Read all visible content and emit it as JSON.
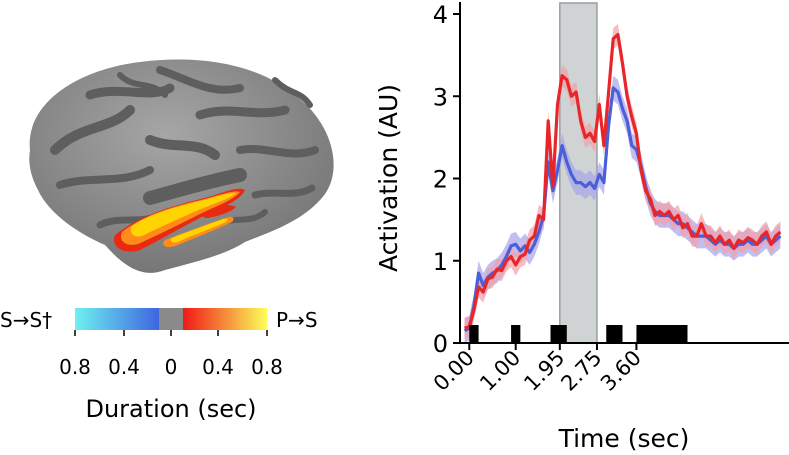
{
  "brain_panel": {
    "colorbar": {
      "left_label": "S→S†",
      "right_label": "P→S",
      "ticks": [
        "0.8",
        "0.4",
        "0",
        "0.4",
        "0.8"
      ],
      "title": "Duration (sec)",
      "colors": {
        "neg_low": "#6ef0f0",
        "neg_high": "#3e66e0",
        "zero": "#8a8a8a",
        "pos_low": "#f01818",
        "pos_high": "#fbff5a"
      }
    },
    "colors": {
      "cortex": "#8d8d8d",
      "sulci": "#5e5e5e",
      "activation_hot": "#ffd400",
      "activation_warm": "#ff8c1a",
      "activation_red": "#e82a10"
    }
  },
  "chart_data": {
    "type": "line",
    "xlabel": "Time (sec)",
    "ylabel": "Activation (AU)",
    "xlim": [
      -0.2,
      6.8
    ],
    "ylim": [
      0,
      4
    ],
    "yticks": [
      0,
      1,
      2,
      3,
      4
    ],
    "xticks": [
      0.0,
      1.0,
      1.95,
      2.75,
      3.6
    ],
    "xtick_labels": [
      "0.00",
      "1.00",
      "1.95",
      "2.75",
      "3.60"
    ],
    "shaded_interval": {
      "x0": 1.95,
      "x1": 2.75,
      "color": "#cfd3d3"
    },
    "significance_bars": [
      [
        0.0,
        0.2
      ],
      [
        0.9,
        1.1
      ],
      [
        1.75,
        2.1
      ],
      [
        2.95,
        3.3
      ],
      [
        3.6,
        4.7
      ]
    ],
    "series": [
      {
        "name": "red",
        "color": "#e8262a",
        "band_color": "#f2a0a8",
        "x": [
          -0.1,
          0.0,
          0.1,
          0.2,
          0.3,
          0.4,
          0.5,
          0.6,
          0.7,
          0.8,
          0.9,
          1.0,
          1.1,
          1.2,
          1.3,
          1.4,
          1.5,
          1.6,
          1.7,
          1.8,
          1.9,
          2.0,
          2.1,
          2.2,
          2.3,
          2.4,
          2.5,
          2.6,
          2.7,
          2.8,
          2.9,
          3.0,
          3.1,
          3.2,
          3.3,
          3.4,
          3.5,
          3.6,
          3.7,
          3.8,
          3.9,
          4.0,
          4.1,
          4.2,
          4.3,
          4.4,
          4.5,
          4.6,
          4.7,
          4.8,
          4.9,
          5.0,
          5.1,
          5.2,
          5.3,
          5.4,
          5.5,
          5.6,
          5.7,
          5.8,
          5.9,
          6.0,
          6.1,
          6.2,
          6.3,
          6.4,
          6.5,
          6.6,
          6.7
        ],
        "values": [
          0.18,
          0.2,
          0.4,
          0.68,
          0.62,
          0.78,
          0.8,
          0.9,
          0.88,
          1.0,
          1.05,
          0.95,
          1.05,
          1.08,
          1.25,
          1.3,
          1.55,
          1.5,
          2.7,
          1.9,
          2.9,
          3.25,
          3.2,
          3.0,
          3.05,
          2.7,
          2.5,
          2.55,
          2.45,
          2.9,
          2.4,
          3.05,
          3.7,
          3.75,
          3.4,
          3.0,
          2.75,
          2.55,
          2.1,
          1.85,
          1.75,
          1.55,
          1.6,
          1.55,
          1.6,
          1.5,
          1.55,
          1.4,
          1.45,
          1.3,
          1.3,
          1.45,
          1.3,
          1.3,
          1.22,
          1.3,
          1.2,
          1.25,
          1.15,
          1.25,
          1.22,
          1.28,
          1.25,
          1.2,
          1.3,
          1.35,
          1.2,
          1.3,
          1.35
        ],
        "band_halfwidth": 0.13
      },
      {
        "name": "blue",
        "color": "#4a5fd8",
        "band_color": "#a7a4ea",
        "x": [
          -0.1,
          0.0,
          0.1,
          0.2,
          0.3,
          0.4,
          0.5,
          0.6,
          0.7,
          0.8,
          0.9,
          1.0,
          1.1,
          1.2,
          1.3,
          1.4,
          1.5,
          1.6,
          1.7,
          1.8,
          1.9,
          2.0,
          2.1,
          2.2,
          2.3,
          2.4,
          2.5,
          2.6,
          2.7,
          2.8,
          2.9,
          3.0,
          3.1,
          3.2,
          3.3,
          3.4,
          3.5,
          3.6,
          3.7,
          3.8,
          3.9,
          4.0,
          4.1,
          4.2,
          4.3,
          4.4,
          4.5,
          4.6,
          4.7,
          4.8,
          4.9,
          5.0,
          5.1,
          5.2,
          5.3,
          5.4,
          5.5,
          5.6,
          5.7,
          5.8,
          5.9,
          6.0,
          6.1,
          6.2,
          6.3,
          6.4,
          6.5,
          6.6,
          6.7
        ],
        "values": [
          0.15,
          0.18,
          0.45,
          0.85,
          0.7,
          0.8,
          0.85,
          0.88,
          0.95,
          1.05,
          1.18,
          1.2,
          1.12,
          1.18,
          1.1,
          1.2,
          1.35,
          1.55,
          2.2,
          1.85,
          2.1,
          2.4,
          2.2,
          2.05,
          1.95,
          1.95,
          1.9,
          1.95,
          1.88,
          2.05,
          1.95,
          2.65,
          3.1,
          3.05,
          2.85,
          2.7,
          2.4,
          2.35,
          2.15,
          1.9,
          1.7,
          1.6,
          1.55,
          1.55,
          1.55,
          1.5,
          1.45,
          1.45,
          1.4,
          1.35,
          1.3,
          1.3,
          1.3,
          1.25,
          1.2,
          1.25,
          1.2,
          1.2,
          1.15,
          1.2,
          1.2,
          1.25,
          1.2,
          1.2,
          1.25,
          1.3,
          1.2,
          1.25,
          1.3
        ],
        "band_halfwidth": 0.15
      }
    ]
  }
}
